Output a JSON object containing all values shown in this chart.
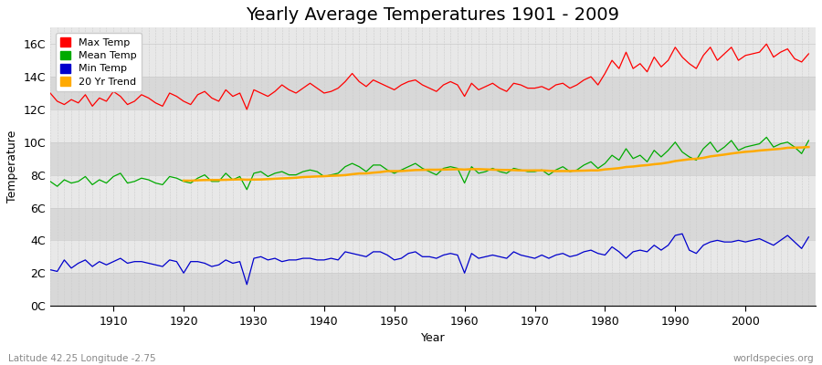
{
  "title": "Yearly Average Temperatures 1901 - 2009",
  "xlabel": "Year",
  "ylabel": "Temperature",
  "subtitle_left": "Latitude 42.25 Longitude -2.75",
  "subtitle_right": "worldspecies.org",
  "years": [
    1901,
    1902,
    1903,
    1904,
    1905,
    1906,
    1907,
    1908,
    1909,
    1910,
    1911,
    1912,
    1913,
    1914,
    1915,
    1916,
    1917,
    1918,
    1919,
    1920,
    1921,
    1922,
    1923,
    1924,
    1925,
    1926,
    1927,
    1928,
    1929,
    1930,
    1931,
    1932,
    1933,
    1934,
    1935,
    1936,
    1937,
    1938,
    1939,
    1940,
    1941,
    1942,
    1943,
    1944,
    1945,
    1946,
    1947,
    1948,
    1949,
    1950,
    1951,
    1952,
    1953,
    1954,
    1955,
    1956,
    1957,
    1958,
    1959,
    1960,
    1961,
    1962,
    1963,
    1964,
    1965,
    1966,
    1967,
    1968,
    1969,
    1970,
    1971,
    1972,
    1973,
    1974,
    1975,
    1976,
    1977,
    1978,
    1979,
    1980,
    1981,
    1982,
    1983,
    1984,
    1985,
    1986,
    1987,
    1988,
    1989,
    1990,
    1991,
    1992,
    1993,
    1994,
    1995,
    1996,
    1997,
    1998,
    1999,
    2000,
    2001,
    2002,
    2003,
    2004,
    2005,
    2006,
    2007,
    2008,
    2009
  ],
  "max_temp": [
    13.0,
    12.5,
    12.3,
    12.6,
    12.4,
    12.9,
    12.2,
    12.7,
    12.5,
    13.1,
    12.8,
    12.3,
    12.5,
    12.9,
    12.7,
    12.4,
    12.2,
    13.0,
    12.8,
    12.5,
    12.3,
    12.9,
    13.1,
    12.7,
    12.5,
    13.2,
    12.8,
    13.0,
    12.0,
    13.2,
    13.0,
    12.8,
    13.1,
    13.5,
    13.2,
    13.0,
    13.3,
    13.6,
    13.3,
    13.0,
    13.1,
    13.3,
    13.7,
    14.2,
    13.7,
    13.4,
    13.8,
    13.6,
    13.4,
    13.2,
    13.5,
    13.7,
    13.8,
    13.5,
    13.3,
    13.1,
    13.5,
    13.7,
    13.5,
    12.8,
    13.6,
    13.2,
    13.4,
    13.6,
    13.3,
    13.1,
    13.6,
    13.5,
    13.3,
    13.3,
    13.4,
    13.2,
    13.5,
    13.6,
    13.3,
    13.5,
    13.8,
    14.0,
    13.5,
    14.2,
    15.0,
    14.5,
    15.5,
    14.5,
    14.8,
    14.3,
    15.2,
    14.6,
    15.0,
    15.8,
    15.2,
    14.8,
    14.5,
    15.3,
    15.8,
    15.0,
    15.4,
    15.8,
    15.0,
    15.3,
    15.4,
    15.5,
    16.0,
    15.2,
    15.5,
    15.7,
    15.1,
    14.9,
    15.4
  ],
  "mean_temp": [
    7.6,
    7.3,
    7.7,
    7.5,
    7.6,
    7.9,
    7.4,
    7.7,
    7.5,
    7.9,
    8.1,
    7.5,
    7.6,
    7.8,
    7.7,
    7.5,
    7.4,
    7.9,
    7.8,
    7.6,
    7.5,
    7.8,
    8.0,
    7.6,
    7.6,
    8.1,
    7.7,
    7.9,
    7.1,
    8.1,
    8.2,
    7.9,
    8.1,
    8.2,
    8.0,
    8.0,
    8.2,
    8.3,
    8.2,
    7.9,
    8.0,
    8.1,
    8.5,
    8.7,
    8.5,
    8.2,
    8.6,
    8.6,
    8.3,
    8.1,
    8.3,
    8.5,
    8.7,
    8.4,
    8.2,
    8.0,
    8.4,
    8.5,
    8.4,
    7.5,
    8.5,
    8.1,
    8.2,
    8.4,
    8.2,
    8.1,
    8.4,
    8.3,
    8.2,
    8.2,
    8.3,
    8.0,
    8.3,
    8.5,
    8.2,
    8.3,
    8.6,
    8.8,
    8.4,
    8.7,
    9.2,
    8.9,
    9.6,
    9.0,
    9.2,
    8.8,
    9.5,
    9.1,
    9.5,
    10.0,
    9.4,
    9.1,
    8.9,
    9.6,
    10.0,
    9.4,
    9.7,
    10.1,
    9.5,
    9.7,
    9.8,
    9.9,
    10.3,
    9.7,
    9.9,
    10.0,
    9.7,
    9.3,
    10.1
  ],
  "min_temp": [
    2.2,
    2.1,
    2.8,
    2.3,
    2.6,
    2.8,
    2.4,
    2.7,
    2.5,
    2.7,
    2.9,
    2.6,
    2.7,
    2.7,
    2.6,
    2.5,
    2.4,
    2.8,
    2.7,
    2.0,
    2.7,
    2.7,
    2.6,
    2.4,
    2.5,
    2.8,
    2.6,
    2.7,
    1.3,
    2.9,
    3.0,
    2.8,
    2.9,
    2.7,
    2.8,
    2.8,
    2.9,
    2.9,
    2.8,
    2.8,
    2.9,
    2.8,
    3.3,
    3.2,
    3.1,
    3.0,
    3.3,
    3.3,
    3.1,
    2.8,
    2.9,
    3.2,
    3.3,
    3.0,
    3.0,
    2.9,
    3.1,
    3.2,
    3.1,
    2.0,
    3.2,
    2.9,
    3.0,
    3.1,
    3.0,
    2.9,
    3.3,
    3.1,
    3.0,
    2.9,
    3.1,
    2.9,
    3.1,
    3.2,
    3.0,
    3.1,
    3.3,
    3.4,
    3.2,
    3.1,
    3.6,
    3.3,
    2.9,
    3.3,
    3.4,
    3.3,
    3.7,
    3.4,
    3.7,
    4.3,
    4.4,
    3.4,
    3.2,
    3.7,
    3.9,
    4.0,
    3.9,
    3.9,
    4.0,
    3.9,
    4.0,
    4.1,
    3.9,
    3.7,
    4.0,
    4.3,
    3.9,
    3.5,
    4.2
  ],
  "ylim": [
    0,
    17
  ],
  "yticks": [
    0,
    2,
    4,
    6,
    8,
    10,
    12,
    14,
    16
  ],
  "ytick_labels": [
    "0C",
    "2C",
    "4C",
    "6C",
    "8C",
    "10C",
    "12C",
    "14C",
    "16C"
  ],
  "xlim": [
    1901,
    2010
  ],
  "xticks": [
    1910,
    1920,
    1930,
    1940,
    1950,
    1960,
    1970,
    1980,
    1990,
    2000
  ],
  "max_color": "#ff0000",
  "mean_color": "#00aa00",
  "min_color": "#0000cc",
  "trend_color": "#ffaa00",
  "bg_color": "#ffffff",
  "plot_bg_color": "#e8e8e8",
  "grid_color": "#ffffff",
  "band_colors": [
    "#d8d8d8",
    "#e8e8e8"
  ],
  "legend_labels": [
    "Max Temp",
    "Mean Temp",
    "Min Temp",
    "20 Yr Trend"
  ],
  "title_fontsize": 14,
  "label_fontsize": 9,
  "tick_fontsize": 9
}
